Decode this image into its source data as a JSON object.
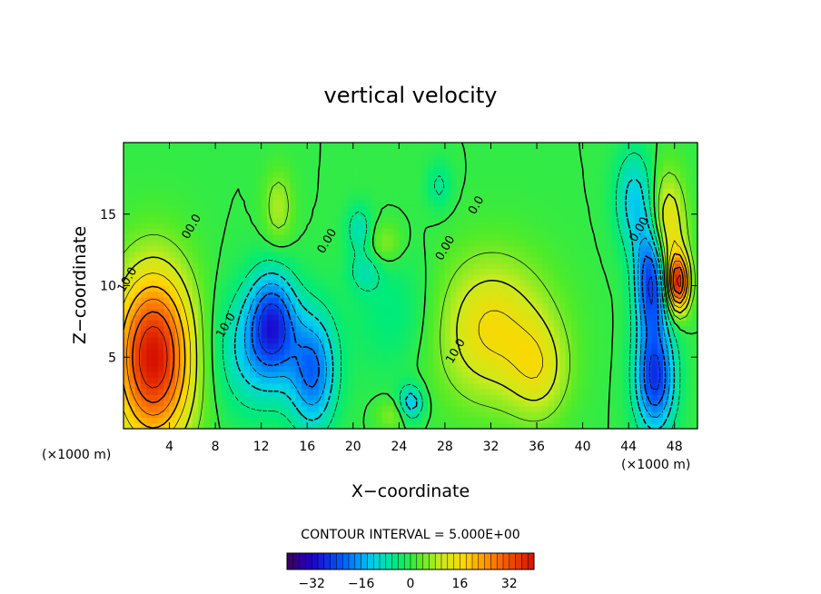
{
  "chart_data": {
    "type": "heatmap",
    "title": "vertical velocity",
    "xlabel": "X−coordinate",
    "ylabel": "Z−coordinate",
    "x_unit": "(×1000 m)",
    "x_unit_right": "(×1000 m)",
    "xlim": [
      0,
      50
    ],
    "ylim": [
      0,
      20
    ],
    "x_ticks": [
      4,
      8,
      12,
      16,
      20,
      24,
      28,
      32,
      36,
      40,
      44,
      48
    ],
    "y_ticks": [
      5,
      10,
      15
    ],
    "contour_interval_text": "CONTOUR INTERVAL = 5.000E+00",
    "contour_labels": [
      {
        "text": "10.0",
        "x": 0.6,
        "y": 10.3
      },
      {
        "text": "00.0",
        "x": 6.2,
        "y": 14.0
      },
      {
        "text": "10.0",
        "x": 9.2,
        "y": 7.1
      },
      {
        "text": "0.00",
        "x": 18.0,
        "y": 13.0
      },
      {
        "text": "0.00",
        "x": 28.3,
        "y": 12.5
      },
      {
        "text": "10.0",
        "x": 29.2,
        "y": 5.3
      },
      {
        "text": "0.0",
        "x": 31.0,
        "y": 15.5
      },
      {
        "text": "0.00",
        "x": 45.2,
        "y": 13.8
      }
    ],
    "colorbar": {
      "min": -40,
      "max": 40,
      "ticks": [
        -32,
        -16,
        0,
        16,
        32
      ],
      "tick_labels": [
        "−32",
        "−16",
        "0",
        "16",
        "32"
      ]
    },
    "features": [
      {
        "sign": 1,
        "x": 2.6,
        "y": 5.0,
        "amp": 40,
        "sx": 2.4,
        "sy": 4.2
      },
      {
        "sign": 1,
        "x": 32.0,
        "y": 7.0,
        "amp": 16,
        "sx": 3.5,
        "sy": 3.5
      },
      {
        "sign": 1,
        "x": 36.2,
        "y": 4.0,
        "amp": 10,
        "sx": 1.8,
        "sy": 2.4
      },
      {
        "sign": 1,
        "x": 47.3,
        "y": 14.0,
        "amp": 18,
        "sx": 1.1,
        "sy": 2.6
      },
      {
        "sign": 1,
        "x": 48.3,
        "y": 10.2,
        "amp": 36,
        "sx": 0.7,
        "sy": 1.4
      },
      {
        "sign": 1,
        "x": 13.5,
        "y": 15.5,
        "amp": 8,
        "sx": 0.9,
        "sy": 1.8
      },
      {
        "sign": 1,
        "x": 22.8,
        "y": 13.0,
        "amp": 6,
        "sx": 1.0,
        "sy": 1.0
      },
      {
        "sign": 1,
        "x": 23.5,
        "y": 1.0,
        "amp": 6,
        "sx": 1.0,
        "sy": 0.8
      },
      {
        "sign": -1,
        "x": 13.0,
        "y": 7.5,
        "amp": 22,
        "sx": 1.4,
        "sy": 2.4
      },
      {
        "sign": -1,
        "x": 16.5,
        "y": 4.0,
        "amp": 20,
        "sx": 1.4,
        "sy": 2.8
      },
      {
        "sign": -1,
        "x": 11.5,
        "y": 5.5,
        "amp": 12,
        "sx": 2.6,
        "sy": 3.0
      },
      {
        "sign": -1,
        "x": 46.0,
        "y": 10.5,
        "amp": 28,
        "sx": 1.0,
        "sy": 2.8
      },
      {
        "sign": -1,
        "x": 46.3,
        "y": 3.5,
        "amp": 26,
        "sx": 1.2,
        "sy": 2.6
      },
      {
        "sign": -1,
        "x": 44.5,
        "y": 16.0,
        "amp": 12,
        "sx": 1.2,
        "sy": 2.5
      },
      {
        "sign": -1,
        "x": 25.0,
        "y": 1.8,
        "amp": 14,
        "sx": 0.8,
        "sy": 0.9
      },
      {
        "sign": -1,
        "x": 20.5,
        "y": 14.0,
        "amp": 8,
        "sx": 0.8,
        "sy": 1.2
      },
      {
        "sign": -1,
        "x": 21.0,
        "y": 11.0,
        "amp": 6,
        "sx": 1.0,
        "sy": 1.0
      },
      {
        "sign": -1,
        "x": 27.5,
        "y": 17.0,
        "amp": 6,
        "sx": 0.8,
        "sy": 1.2
      },
      {
        "sign": -1,
        "x": 24.0,
        "y": 8.0,
        "amp": 5,
        "sx": 3.0,
        "sy": 3.0
      }
    ]
  }
}
